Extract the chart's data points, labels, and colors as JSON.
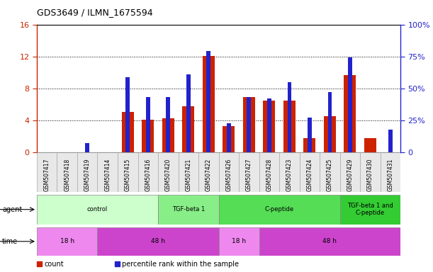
{
  "title": "GDS3649 / ILMN_1675594",
  "samples": [
    "GSM507417",
    "GSM507418",
    "GSM507419",
    "GSM507414",
    "GSM507415",
    "GSM507416",
    "GSM507420",
    "GSM507421",
    "GSM507422",
    "GSM507426",
    "GSM507427",
    "GSM507428",
    "GSM507423",
    "GSM507424",
    "GSM507425",
    "GSM507429",
    "GSM507430",
    "GSM507431"
  ],
  "count_values": [
    0,
    0,
    0,
    0,
    5.1,
    4.1,
    4.3,
    5.8,
    12.1,
    3.3,
    6.9,
    6.5,
    6.5,
    1.8,
    4.5,
    9.7,
    1.8,
    0
  ],
  "percentile_values": [
    0,
    0,
    7,
    0,
    59,
    43,
    43,
    61,
    79,
    23,
    43,
    42,
    55,
    27,
    47,
    74,
    0,
    18
  ],
  "count_color": "#cc2200",
  "percentile_color": "#2222cc",
  "ylim_left": [
    0,
    16
  ],
  "ylim_right": [
    0,
    100
  ],
  "yticks_left": [
    0,
    4,
    8,
    12,
    16
  ],
  "ytick_labels_left": [
    "0",
    "4",
    "8",
    "12",
    "16"
  ],
  "yticks_right": [
    0,
    25,
    50,
    75,
    100
  ],
  "ytick_labels_right": [
    "0",
    "25%",
    "50%",
    "75%",
    "100%"
  ],
  "agent_groups": [
    {
      "label": "control",
      "start": 0,
      "end": 6,
      "color": "#ccffcc"
    },
    {
      "label": "TGF-beta 1",
      "start": 6,
      "end": 9,
      "color": "#88ee88"
    },
    {
      "label": "C-peptide",
      "start": 9,
      "end": 15,
      "color": "#55dd55"
    },
    {
      "label": "TGF-beta 1 and\nC-peptide",
      "start": 15,
      "end": 18,
      "color": "#33cc33"
    }
  ],
  "time_groups": [
    {
      "label": "18 h",
      "start": 0,
      "end": 3,
      "color": "#ee88ee"
    },
    {
      "label": "48 h",
      "start": 3,
      "end": 9,
      "color": "#cc44cc"
    },
    {
      "label": "18 h",
      "start": 9,
      "end": 11,
      "color": "#ee88ee"
    },
    {
      "label": "48 h",
      "start": 11,
      "end": 18,
      "color": "#cc44cc"
    }
  ],
  "legend_items": [
    {
      "label": "count",
      "color": "#cc2200"
    },
    {
      "label": "percentile rank within the sample",
      "color": "#2222cc"
    }
  ],
  "tick_label_color_left": "#cc2200",
  "tick_label_color_right": "#2222cc"
}
